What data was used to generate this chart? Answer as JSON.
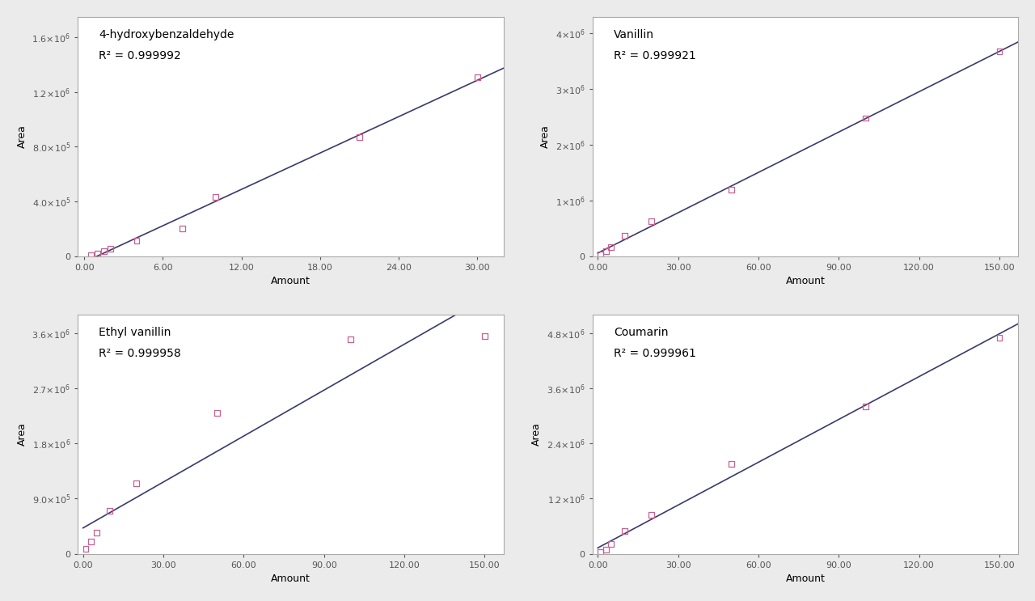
{
  "subplots": [
    {
      "title": "4-hydroxybenzaldehyde",
      "r2": "0.999992",
      "x_data": [
        0.5,
        1.0,
        1.5,
        2.0,
        4.0,
        7.5,
        10.0,
        21.0,
        30.0
      ],
      "y_data": [
        8000,
        20000,
        35000,
        55000,
        110000,
        200000,
        430000,
        870000,
        1310000
      ],
      "xlim": [
        -0.5,
        32
      ],
      "ylim": [
        0,
        1750000
      ],
      "xticks": [
        0.0,
        6.0,
        12.0,
        18.0,
        24.0,
        30.0
      ],
      "yticks": [
        0,
        400000,
        800000,
        1200000,
        1600000
      ],
      "ytick_labels": [
        "0",
        "4.0×10$^{5}$",
        "8.0×10$^{5}$",
        "1.2×10$^{6}$",
        "1.6×10$^{6}$"
      ],
      "xlabel": "Amount",
      "ylabel": "Area"
    },
    {
      "title": "Vanillin",
      "r2": "0.999921",
      "x_data": [
        1.0,
        3.0,
        5.0,
        10.0,
        20.0,
        50.0,
        100.0,
        150.0
      ],
      "y_data": [
        30000,
        90000,
        160000,
        360000,
        620000,
        1200000,
        2480000,
        3680000
      ],
      "xlim": [
        -2,
        157
      ],
      "ylim": [
        0,
        4300000
      ],
      "xticks": [
        0.0,
        30.0,
        60.0,
        90.0,
        120.0,
        150.0
      ],
      "yticks": [
        0,
        1000000,
        2000000,
        3000000,
        4000000
      ],
      "ytick_labels": [
        "0",
        "1×10$^{6}$",
        "2×10$^{6}$",
        "3×10$^{6}$",
        "4×10$^{6}$"
      ],
      "xlabel": "Amount",
      "ylabel": "Area"
    },
    {
      "title": "Ethyl vanillin",
      "r2": "0.999958",
      "x_data": [
        1.0,
        3.0,
        5.0,
        10.0,
        20.0,
        50.0,
        100.0,
        150.0
      ],
      "y_data": [
        80000,
        200000,
        350000,
        700000,
        1150000,
        2300000,
        3500000,
        3550000
      ],
      "xlim": [
        -2,
        157
      ],
      "ylim": [
        0,
        3900000
      ],
      "xticks": [
        0.0,
        30.0,
        60.0,
        90.0,
        120.0,
        150.0
      ],
      "yticks": [
        0,
        900000,
        1800000,
        2700000,
        3600000
      ],
      "ytick_labels": [
        "0",
        "9.0×10$^{5}$",
        "1.8×10$^{6}$",
        "2.7×10$^{6}$",
        "3.6×10$^{6}$"
      ],
      "xlabel": "Amount",
      "ylabel": "Area"
    },
    {
      "title": "Coumarin",
      "r2": "0.999961",
      "x_data": [
        1.0,
        3.0,
        5.0,
        10.0,
        20.0,
        50.0,
        100.0,
        150.0
      ],
      "y_data": [
        35000,
        90000,
        210000,
        500000,
        850000,
        1950000,
        3200000,
        4700000
      ],
      "xlim": [
        -2,
        157
      ],
      "ylim": [
        0,
        5200000
      ],
      "xticks": [
        0.0,
        30.0,
        60.0,
        90.0,
        120.0,
        150.0
      ],
      "yticks": [
        0,
        1200000,
        2400000,
        3600000,
        4800000
      ],
      "ytick_labels": [
        "0",
        "1.2×10$^{6}$",
        "2.4×10$^{6}$",
        "3.6×10$^{6}$",
        "4.8×10$^{6}$"
      ],
      "xlabel": "Amount",
      "ylabel": "Area"
    }
  ],
  "background_color": "#ebebeb",
  "plot_bg_color": "#ffffff",
  "line_color": "#3a3a6e",
  "marker_facecolor": "none",
  "marker_edgecolor": "#c86090",
  "marker_size": 5,
  "line_width": 1.2
}
